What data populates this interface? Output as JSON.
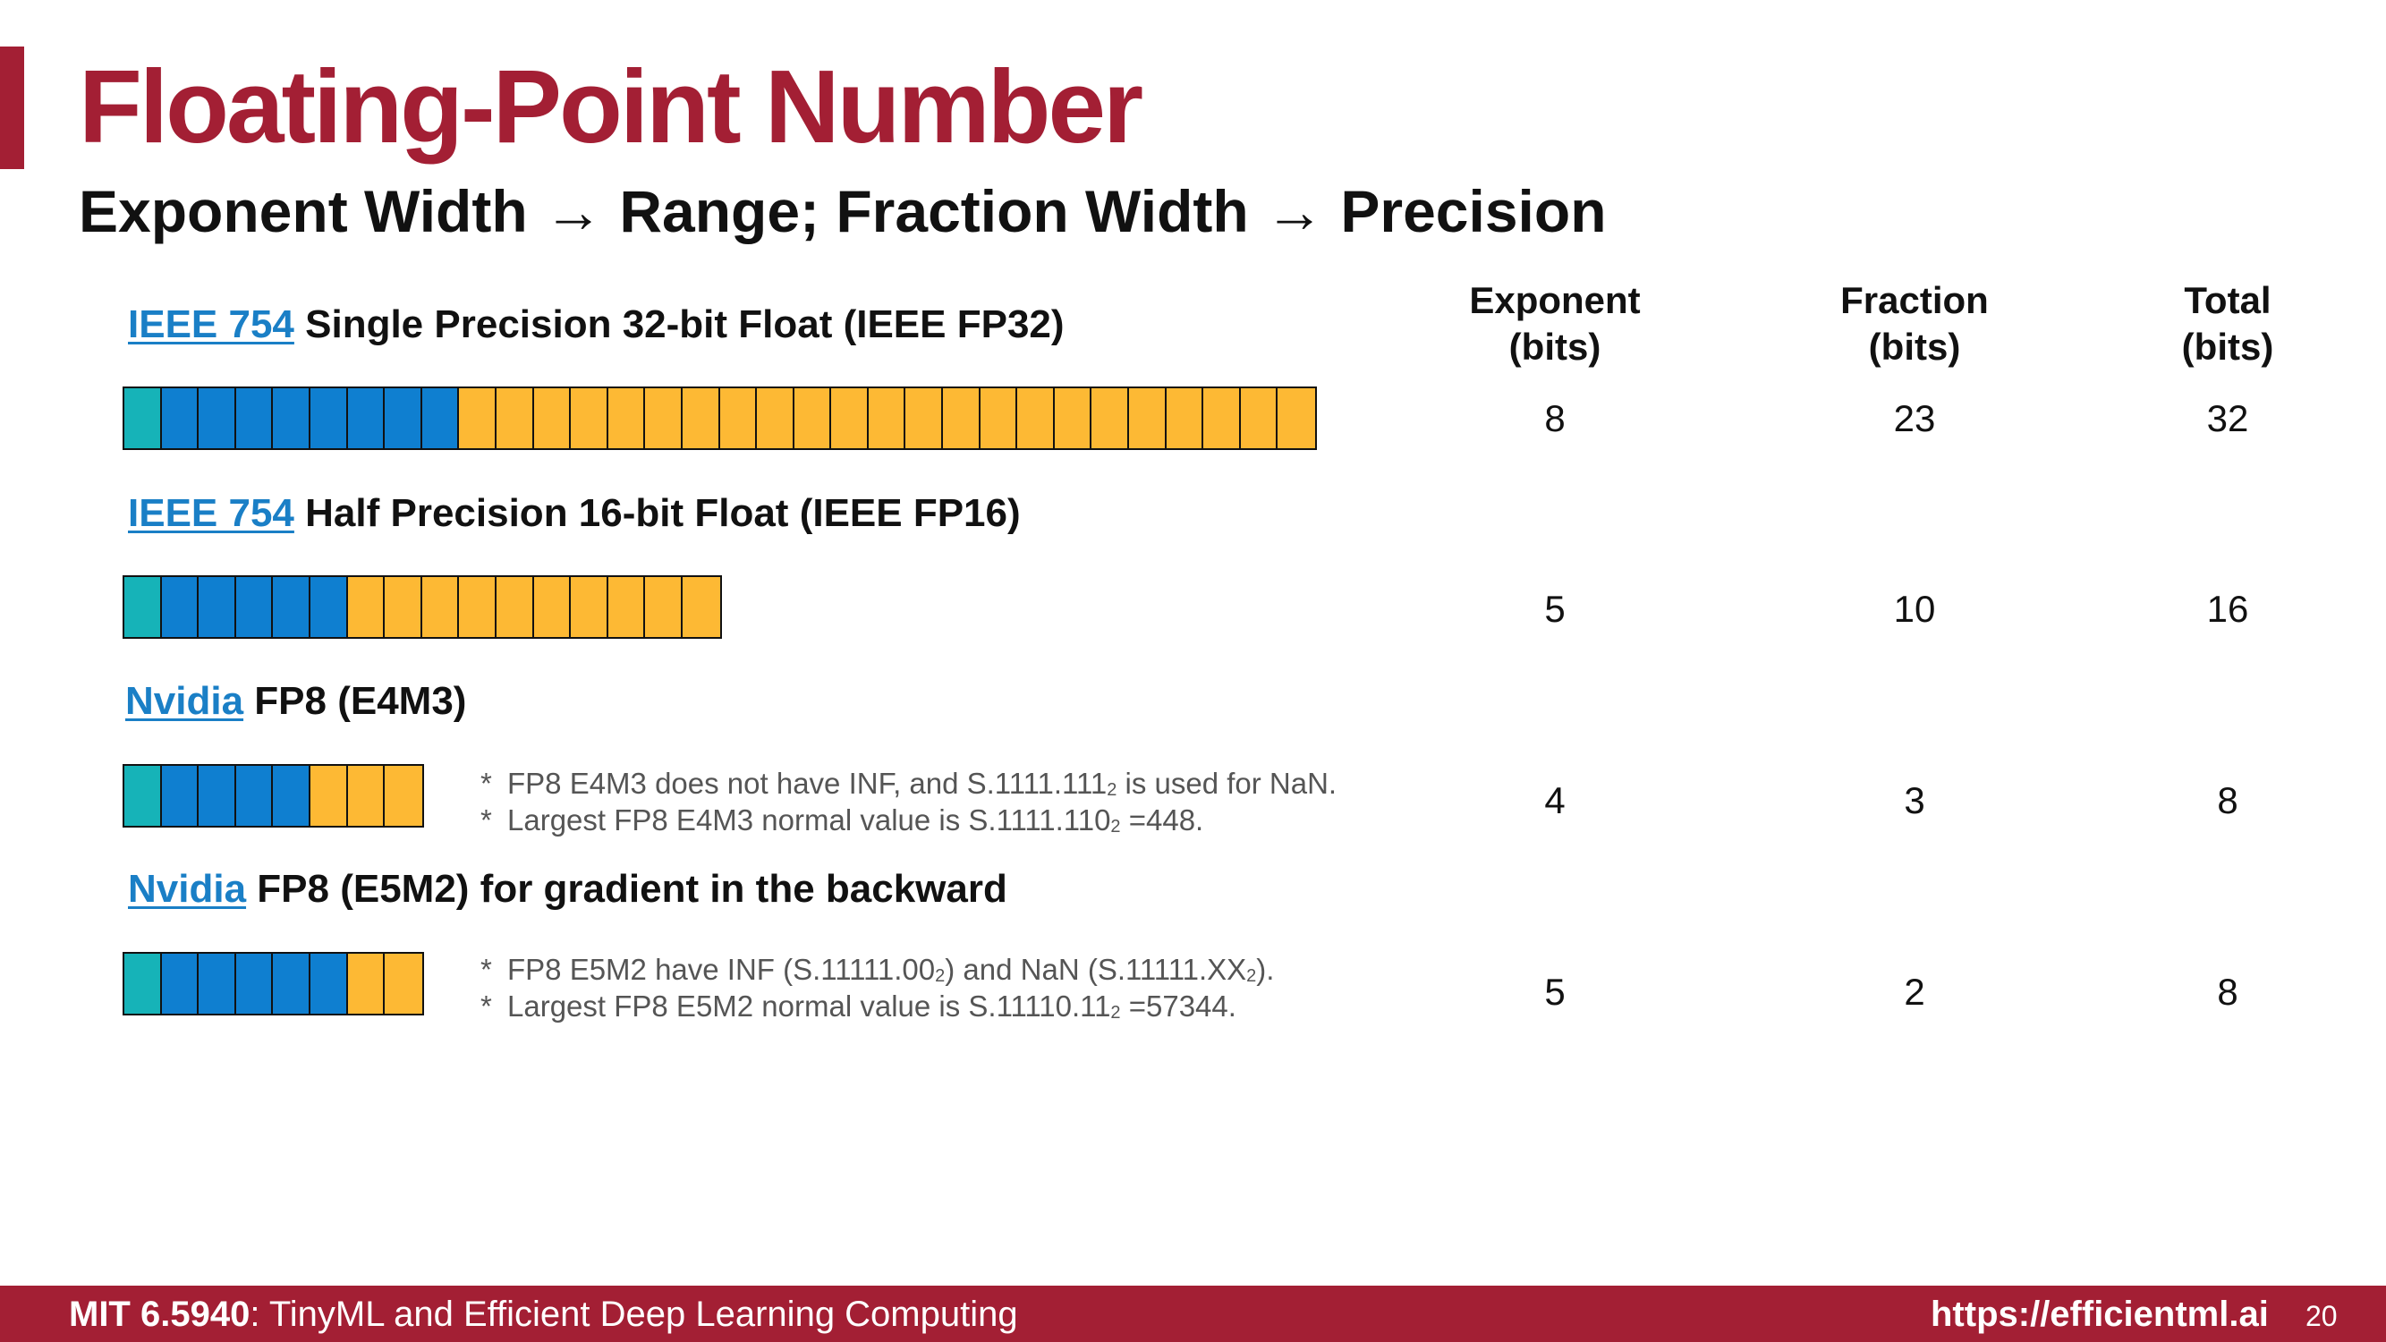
{
  "slide": {
    "title": "Floating-Point Number",
    "subtitle": "Exponent Width → Range; Fraction Width → Precision"
  },
  "table": {
    "headers": [
      {
        "line1": "Exponent",
        "line2": "(bits)"
      },
      {
        "line1": "Fraction",
        "line2": "(bits)"
      },
      {
        "line1": "Total",
        "line2": "(bits)"
      }
    ]
  },
  "formats": [
    {
      "link": "IEEE 754",
      "label": " Single Precision 32-bit Float (IEEE FP32)",
      "sign_bits": 1,
      "exponent": "8",
      "fraction": "23",
      "total": "32",
      "notes": []
    },
    {
      "link": "IEEE 754",
      "label": " Half Precision 16-bit Float (IEEE FP16)",
      "sign_bits": 1,
      "exponent": "5",
      "fraction": "10",
      "total": "16",
      "notes": []
    },
    {
      "link": "Nvidia",
      "label": " FP8 (E4M3)",
      "sign_bits": 1,
      "exponent": "4",
      "fraction": "3",
      "total": "8",
      "notes": [
        {
          "star": "*",
          "pre": "FP8 E4M3 does not have INF, and S.1111.111",
          "sub": "2",
          "post": " is used for NaN.",
          "sub2": "",
          "post2": ""
        },
        {
          "star": "*",
          "pre": "Largest FP8 E4M3 normal value is S.1111.110",
          "sub": "2",
          "post": " =448.",
          "sub2": "",
          "post2": ""
        }
      ]
    },
    {
      "link": "Nvidia",
      "label": " FP8 (E5M2) for gradient in the backward",
      "sign_bits": 1,
      "exponent": "5",
      "fraction": "2",
      "total": "8",
      "notes": [
        {
          "star": "*",
          "pre": "FP8 E5M2 have INF (S.11111.00",
          "sub": "2",
          "post": ") and NaN (S.11111.XX",
          "sub2": "2",
          "post2": ")."
        },
        {
          "star": "*",
          "pre": "Largest FP8 E5M2 normal value is S.11110.11",
          "sub": "2",
          "post": " =57344.",
          "sub2": "",
          "post2": ""
        }
      ]
    }
  ],
  "colors": {
    "sign": "#16b3b8",
    "exponent": "#0f7fd0",
    "fraction": "#fdb934",
    "accent": "#a31f34",
    "link": "#1a7fc6"
  },
  "footer": {
    "course_code": "MIT 6.5940",
    "course_name": ": TinyML and Efficient Deep Learning Computing",
    "url": "https://efficientml.ai",
    "page": "20"
  }
}
